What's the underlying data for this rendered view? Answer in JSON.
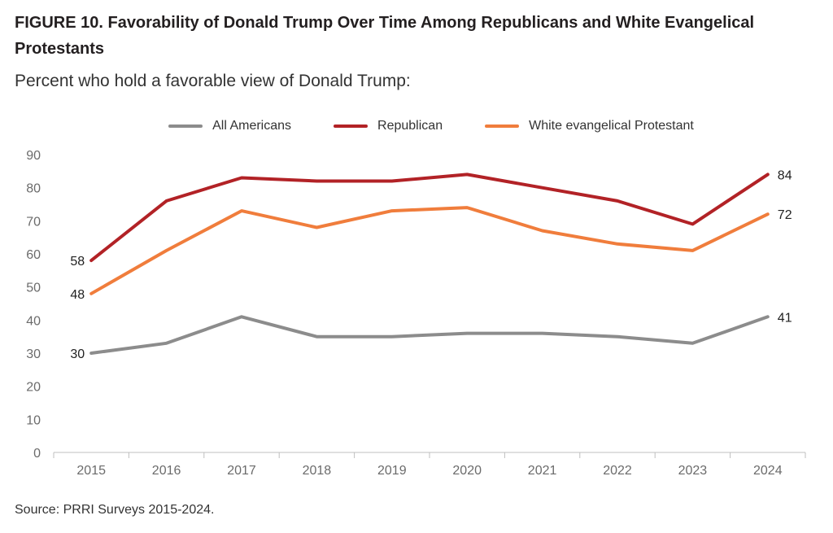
{
  "figure": {
    "title": "FIGURE 10.  Favorability of Donald Trump Over Time Among Republicans and White Evangelical Protestants",
    "subtitle": "Percent who hold a favorable view of Donald Trump:",
    "source": "Source: PRRI Surveys 2015-2024."
  },
  "chart_data": {
    "type": "line",
    "categories": [
      "2015",
      "2016",
      "2017",
      "2018",
      "2019",
      "2020",
      "2021",
      "2022",
      "2023",
      "2024"
    ],
    "ylim": [
      0,
      90
    ],
    "yticks": [
      0,
      10,
      20,
      30,
      40,
      50,
      60,
      70,
      80,
      90
    ],
    "grid": false,
    "legend": "top-center",
    "series": [
      {
        "name": "All Americans",
        "color": "#8c8c8c",
        "values": [
          30,
          33,
          41,
          35,
          35,
          36,
          36,
          35,
          33,
          41
        ],
        "labels": {
          "first": "30",
          "last": "41"
        }
      },
      {
        "name": "Republican",
        "color": "#b22226",
        "values": [
          58,
          76,
          83,
          82,
          82,
          84,
          80,
          76,
          69,
          84
        ],
        "labels": {
          "first": "58",
          "last": "84"
        }
      },
      {
        "name": "White evangelical Protestant",
        "color": "#f07d3c",
        "values": [
          48,
          61,
          73,
          68,
          73,
          74,
          67,
          63,
          61,
          72
        ],
        "labels": {
          "first": "48",
          "last": "72"
        }
      }
    ]
  }
}
